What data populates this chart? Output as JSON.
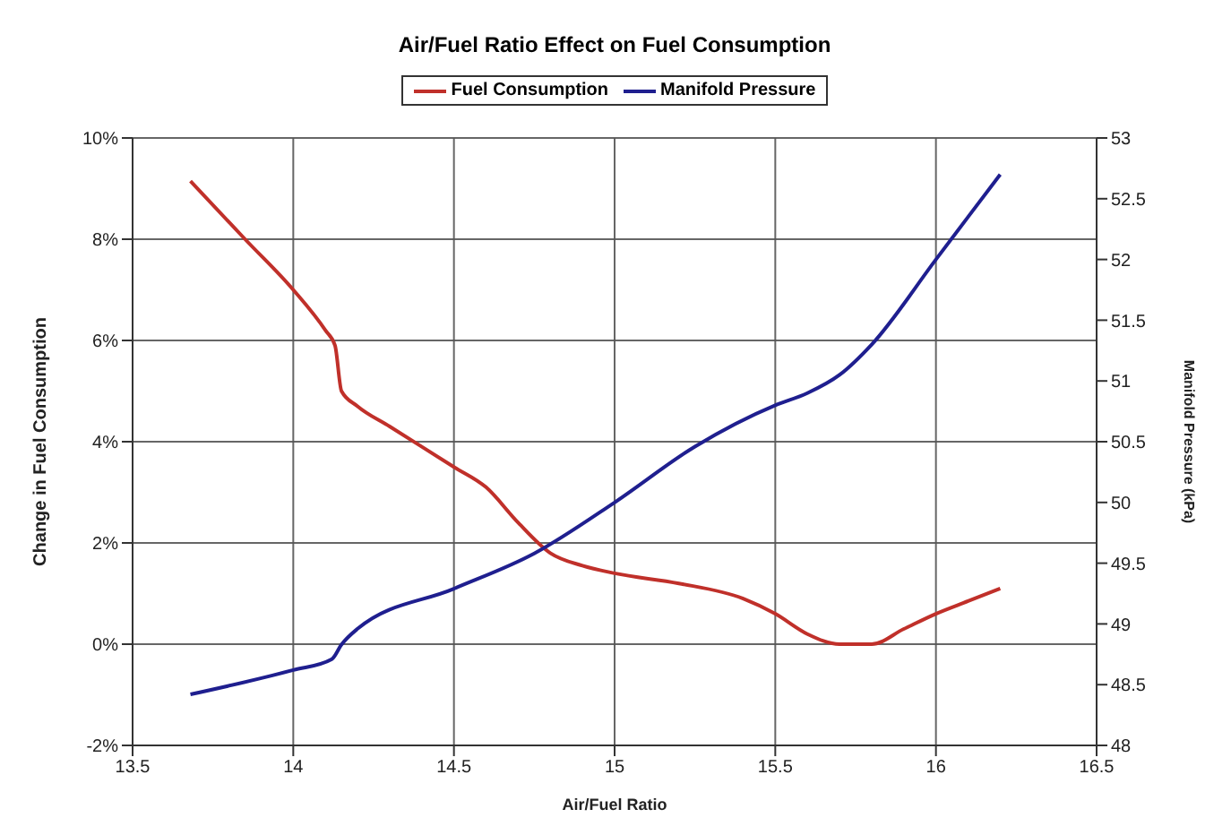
{
  "chart_data": {
    "type": "line",
    "title": "Air/Fuel Ratio Effect on Fuel Consumption",
    "xlabel": "Air/Fuel Ratio",
    "ylabel": "Change in Fuel Consumption",
    "y2label": "Manifold Pressure (kPa)",
    "xlim": [
      13.5,
      16.5
    ],
    "xticks": [
      13.5,
      14,
      14.5,
      15,
      15.5,
      16,
      16.5
    ],
    "ylim": [
      -2,
      10
    ],
    "yticks": [
      {
        "value": -2,
        "label": "-2%"
      },
      {
        "value": 0,
        "label": "0%"
      },
      {
        "value": 2,
        "label": "2%"
      },
      {
        "value": 4,
        "label": "4%"
      },
      {
        "value": 6,
        "label": "6%"
      },
      {
        "value": 8,
        "label": "8%"
      },
      {
        "value": 10,
        "label": "10%"
      }
    ],
    "y2lim": [
      48,
      53
    ],
    "y2ticks": [
      48,
      48.5,
      49,
      49.5,
      50,
      50.5,
      51,
      51.5,
      52,
      52.5,
      53
    ],
    "grid": true,
    "legend": "top",
    "marker": "none",
    "line_style": "solid",
    "series": [
      {
        "name": "Fuel Consumption",
        "color": "#c0302a",
        "x": [
          13.68,
          13.85,
          14.0,
          14.1,
          14.13,
          14.15,
          14.2,
          14.3,
          14.4,
          14.5,
          14.6,
          14.7,
          14.8,
          14.9,
          15.0,
          15.2,
          15.4,
          15.5,
          15.6,
          15.7,
          15.8,
          15.9,
          16.0,
          16.1,
          16.2
        ],
        "values": [
          9.15,
          8.0,
          7.0,
          6.2,
          5.9,
          5.0,
          4.7,
          4.3,
          3.9,
          3.5,
          3.1,
          2.4,
          1.8,
          1.55,
          1.4,
          1.2,
          0.9,
          0.6,
          0.2,
          0.0,
          0.0,
          0.3,
          0.6,
          0.85,
          1.1
        ]
      },
      {
        "name": "Manifold Pressure",
        "color": "#1f1f8f",
        "axis": "y2",
        "x": [
          13.68,
          14.0,
          14.12,
          14.15,
          14.2,
          14.5,
          14.75,
          15.0,
          15.25,
          15.5,
          15.6,
          15.7,
          15.8,
          16.0,
          16.2
        ],
        "values": [
          48.42,
          48.62,
          48.71,
          48.83,
          48.96,
          49.29,
          49.58,
          50.0,
          50.46,
          50.8,
          50.9,
          51.05,
          51.3,
          52.0,
          52.7
        ]
      }
    ]
  }
}
